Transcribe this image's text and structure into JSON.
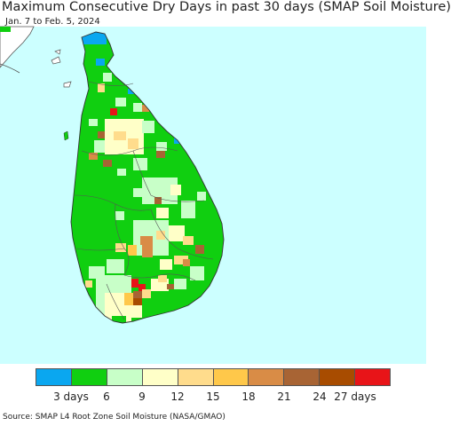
{
  "title": "Maximum Consecutive Dry Days in past 30 days (SMAP Soil Moisture)",
  "subtitle": "Jan. 7 to Feb. 5, 2024",
  "legend": {
    "colors": [
      "#0aa7f0",
      "#10cf10",
      "#c8ffc8",
      "#ffffc8",
      "#ffdc8c",
      "#ffc84a",
      "#d98c46",
      "#a86434",
      "#a84c00",
      "#e81418"
    ],
    "ticks": [
      "3 days",
      "6",
      "9",
      "12",
      "15",
      "18",
      "21",
      "24",
      "27 days"
    ]
  },
  "source": "Source: SMAP L4 Root Zone Soil Moisture (NASA/GMAO)",
  "map_colors": {
    "sea": "#ccffff",
    "land_base": "#10cf10",
    "border": "#555555",
    "mainland": "#ffffff"
  }
}
